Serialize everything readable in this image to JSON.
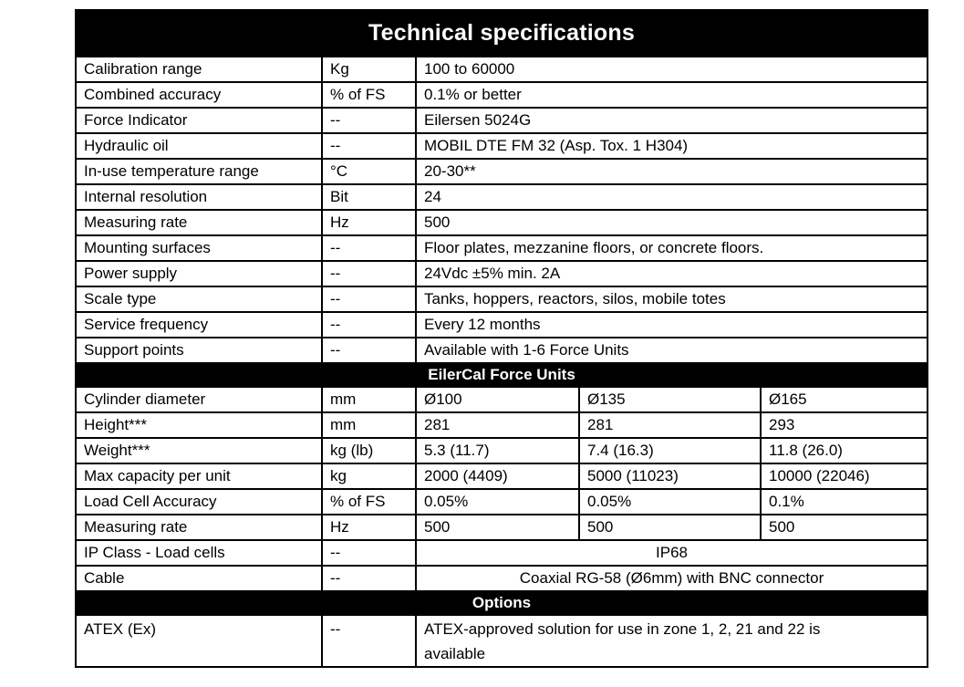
{
  "title": "Technical specifications",
  "colors": {
    "bar_background": "#000000",
    "bar_text": "#ffffff",
    "body_text": "#000000",
    "border": "#000000",
    "page_background": "#ffffff"
  },
  "general": {
    "rows": [
      {
        "label": "Calibration range",
        "unit": "Kg",
        "value": "100 to 60000"
      },
      {
        "label": "Combined accuracy",
        "unit": "% of FS",
        "value": "0.1% or better"
      },
      {
        "label": "Force Indicator",
        "unit": "--",
        "value": "Eilersen 5024G"
      },
      {
        "label": "Hydraulic oil",
        "unit": "--",
        "value": "MOBIL DTE FM 32 (Asp. Tox. 1 H304)"
      },
      {
        "label": "In-use temperature range",
        "unit": "°C",
        "value": "20-30**"
      },
      {
        "label": "Internal resolution",
        "unit": "Bit",
        "value": "24"
      },
      {
        "label": "Measuring rate",
        "unit": "Hz",
        "value": "500"
      },
      {
        "label": "Mounting surfaces",
        "unit": "--",
        "value": "Floor plates, mezzanine floors, or concrete floors."
      },
      {
        "label": "Power supply",
        "unit": "--",
        "value": "24Vdc ±5% min. 2A"
      },
      {
        "label": "Scale type",
        "unit": "--",
        "value": "Tanks, hoppers, reactors, silos, mobile totes"
      },
      {
        "label": "Service frequency",
        "unit": "--",
        "value": "Every 12 months"
      },
      {
        "label": "Support points",
        "unit": "--",
        "value": "Available with 1-6 Force Units"
      }
    ]
  },
  "force_units": {
    "header": "EilerCal Force Units",
    "rows": [
      {
        "label": "Cylinder diameter",
        "unit": "mm",
        "values": [
          "Ø100",
          "Ø135",
          "Ø165"
        ]
      },
      {
        "label": "Height***",
        "unit": "mm",
        "values": [
          "281",
          "281",
          "293"
        ]
      },
      {
        "label": "Weight***",
        "unit": "kg (lb)",
        "values": [
          "5.3 (11.7)",
          "7.4 (16.3)",
          "11.8 (26.0)"
        ]
      },
      {
        "label": "Max capacity per unit",
        "unit": "kg",
        "values": [
          "2000 (4409)",
          "5000 (11023)",
          "10000 (22046)"
        ]
      },
      {
        "label": "Load Cell Accuracy",
        "unit": "% of FS",
        "values": [
          "0.05%",
          "0.05%",
          "0.1%"
        ]
      },
      {
        "label": "Measuring rate",
        "unit": "Hz",
        "values": [
          "500",
          "500",
          "500"
        ]
      }
    ],
    "merged_rows": [
      {
        "label": "IP Class - Load cells",
        "unit": "--",
        "value": "IP68"
      },
      {
        "label": "Cable",
        "unit": "--",
        "value": "Coaxial RG-58 (Ø6mm) with BNC connector"
      }
    ]
  },
  "options": {
    "header": "Options",
    "rows": [
      {
        "label": "ATEX (Ex)",
        "unit": "--",
        "value": "ATEX-approved solution for use in zone 1, 2, 21 and 22 is available"
      }
    ]
  }
}
